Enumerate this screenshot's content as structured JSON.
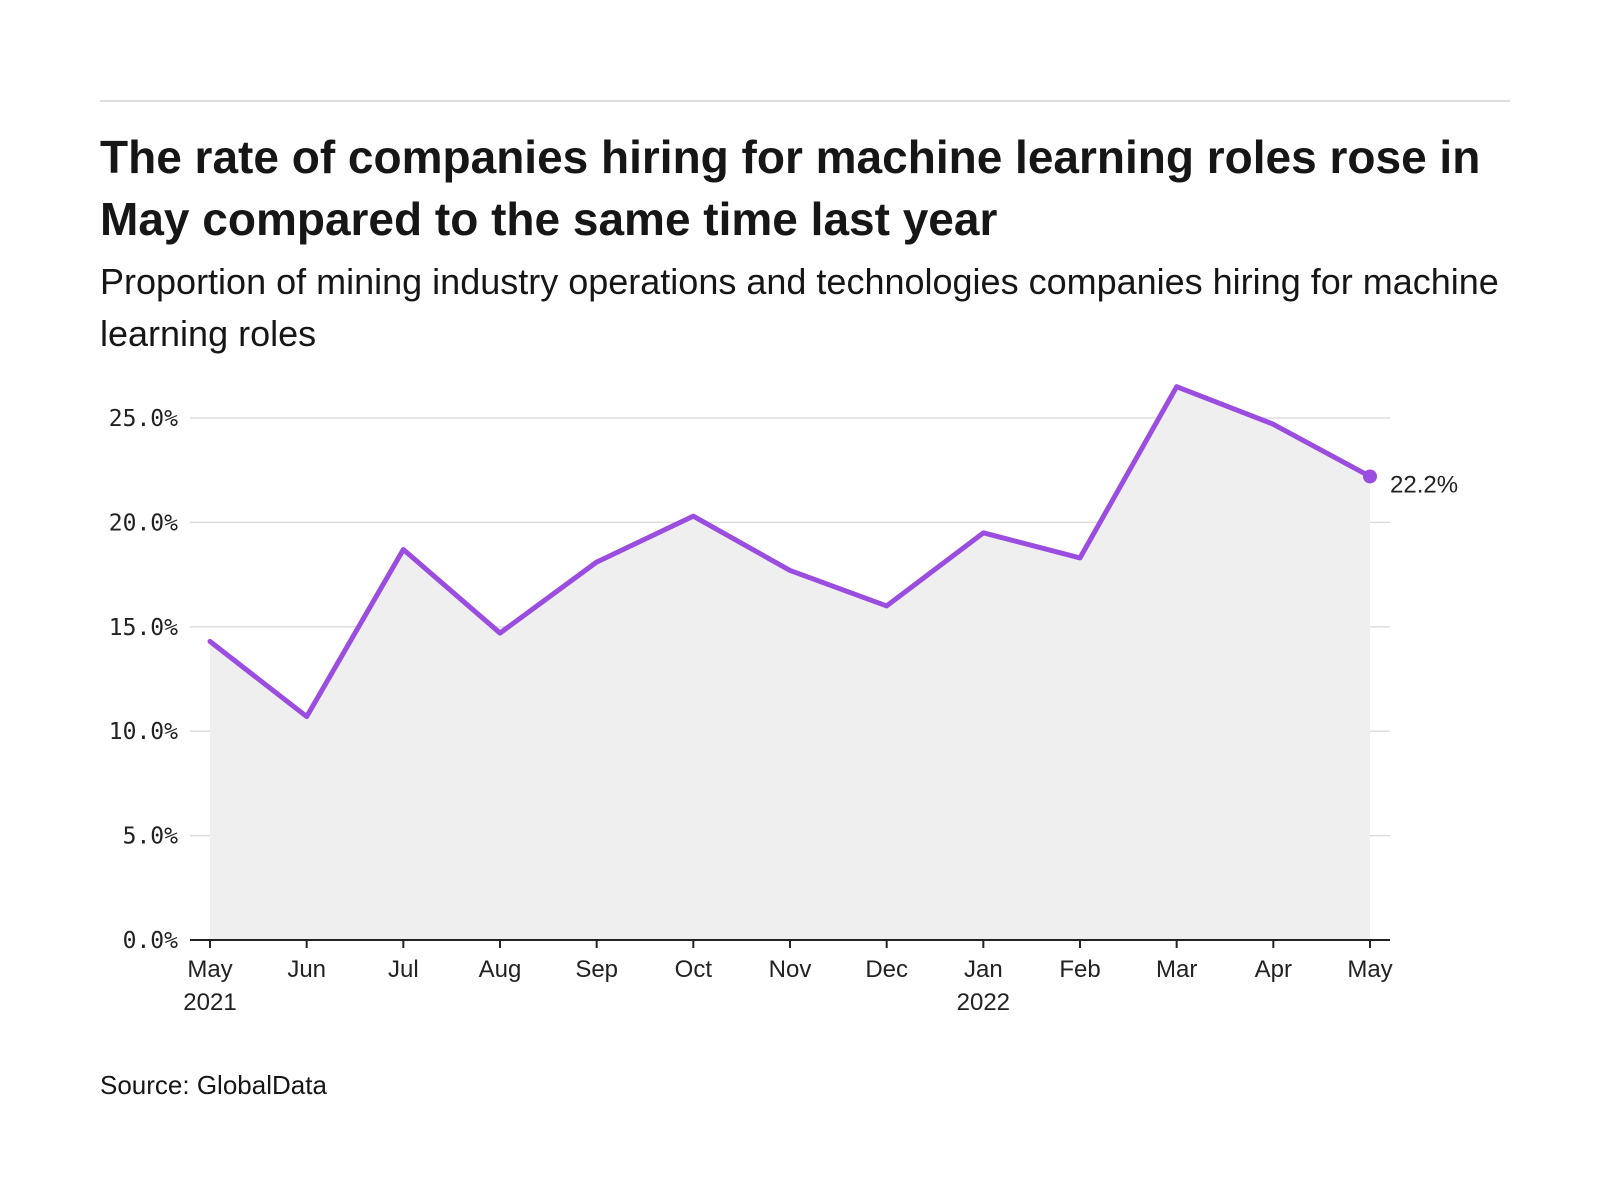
{
  "title": "The rate of companies hiring for machine learning roles rose in May compared to the same time last year",
  "subtitle": "Proportion of mining industry operations and technologies companies hiring for machine learning roles",
  "source": "Source: GlobalData",
  "colors": {
    "line": "#9b4de0",
    "area": "#efefef",
    "grid": "#dddddd",
    "axis": "#222222",
    "rule": "#dedede"
  },
  "chart_data": {
    "type": "area",
    "categories": [
      "May 2021",
      "Jun",
      "Jul",
      "Aug",
      "Sep",
      "Oct",
      "Nov",
      "Dec",
      "Jan 2022",
      "Feb",
      "Mar",
      "Apr",
      "May"
    ],
    "x_tick_labels": [
      [
        "May",
        "2021"
      ],
      [
        "Jun"
      ],
      [
        "Jul"
      ],
      [
        "Aug"
      ],
      [
        "Sep"
      ],
      [
        "Oct"
      ],
      [
        "Nov"
      ],
      [
        "Dec"
      ],
      [
        "Jan",
        "2022"
      ],
      [
        "Feb"
      ],
      [
        "Mar"
      ],
      [
        "Apr"
      ],
      [
        "May"
      ]
    ],
    "series": [
      {
        "values": [
          14.3,
          10.7,
          18.7,
          14.7,
          18.1,
          20.3,
          17.7,
          16.0,
          19.5,
          18.3,
          26.5,
          24.7,
          22.2
        ]
      }
    ],
    "y_ticks": [
      0,
      5,
      10,
      15,
      20,
      25
    ],
    "y_tick_labels": [
      "0.0%",
      "5.0%",
      "10.0%",
      "15.0%",
      "20.0%",
      "25.0%"
    ],
    "ylim": [
      0,
      27
    ],
    "grid": true,
    "end_label": "22.2%",
    "xlabel": "",
    "ylabel": ""
  }
}
